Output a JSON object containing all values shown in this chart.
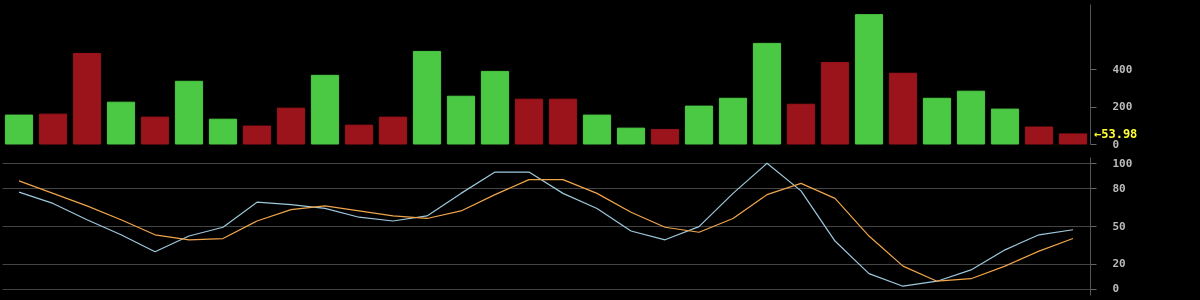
{
  "chart_data": [
    {
      "type": "bar",
      "categories": [
        null,
        null,
        null,
        null,
        null,
        null,
        null,
        null,
        null,
        null,
        null,
        null,
        null,
        null,
        null,
        null,
        null,
        null,
        null,
        null,
        null,
        null,
        null,
        null,
        null,
        null,
        null,
        null,
        null,
        null,
        null,
        null
      ],
      "values": [
        155,
        160,
        485,
        224,
        144,
        336,
        133,
        96,
        192,
        368,
        101,
        144,
        496,
        256,
        389,
        240,
        240,
        155,
        85,
        78,
        203,
        245,
        539,
        213,
        437,
        693,
        379,
        245,
        283,
        187,
        91,
        53.98
      ],
      "colors": [
        "#4cc944",
        "#9b141b",
        "#9b141b",
        "#4cc944",
        "#9b141b",
        "#4cc944",
        "#4cc944",
        "#9b141b",
        "#9b141b",
        "#4cc944",
        "#9b141b",
        "#9b141b",
        "#4cc944",
        "#4cc944",
        "#4cc944",
        "#9b141b",
        "#9b141b",
        "#4cc944",
        "#4cc944",
        "#9b141b",
        "#4cc944",
        "#4cc944",
        "#4cc944",
        "#9b141b",
        "#9b141b",
        "#4cc944",
        "#9b141b",
        "#4cc944",
        "#4cc944",
        "#4cc944",
        "#9b141b",
        "#9b141b"
      ],
      "ylim": [
        0,
        750
      ],
      "yticks": [
        0,
        200,
        400
      ],
      "tick_labels": "y",
      "grid": false,
      "annotations": [
        "←53.98"
      ]
    },
    {
      "type": "line",
      "categories": [
        null,
        null,
        null,
        null,
        null,
        null,
        null,
        null,
        null,
        null,
        null,
        null,
        null,
        null,
        null,
        null,
        null,
        null,
        null,
        null,
        null,
        null,
        null,
        null,
        null,
        null,
        null,
        null,
        null,
        null,
        null,
        null
      ],
      "series": [
        {
          "color": "#9ec8dc",
          "values": [
            77,
            68,
            55,
            43,
            29.5,
            42,
            49,
            69,
            67,
            64,
            57,
            54,
            58,
            76,
            93,
            93,
            76,
            64,
            46,
            39,
            49.5,
            76,
            100,
            78,
            38,
            12,
            2,
            6,
            15,
            31,
            43,
            47
          ]
        },
        {
          "color": "#f0a54a",
          "values": [
            86,
            76,
            66,
            55,
            43,
            39,
            40,
            54,
            63,
            66,
            62,
            58,
            56,
            62,
            75,
            87,
            87,
            76,
            61,
            49,
            45,
            56,
            75,
            84,
            72,
            42,
            18,
            6,
            8,
            18,
            30,
            40
          ]
        }
      ],
      "ylim": [
        -5,
        105
      ],
      "yticks": [
        0,
        20,
        50,
        80,
        100
      ],
      "tick_labels": "y",
      "grid": true
    }
  ]
}
